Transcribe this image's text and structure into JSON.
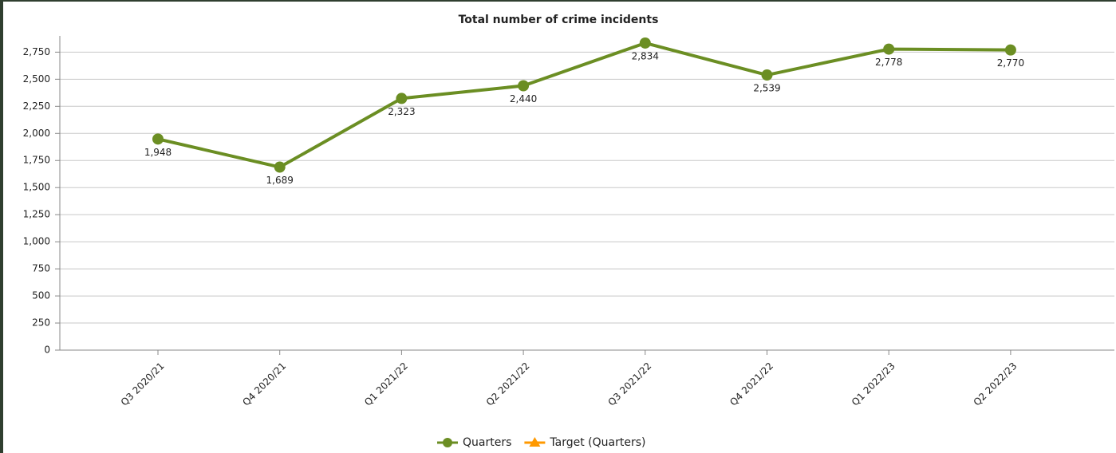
{
  "chart_data": {
    "type": "line",
    "title": "Total number of crime incidents",
    "categories": [
      "Q3 2020/21",
      "Q4 2020/21",
      "Q1 2021/22",
      "Q2 2021/22",
      "Q3 2021/22",
      "Q4 2021/22",
      "Q1 2022/23",
      "Q2 2022/23"
    ],
    "series": [
      {
        "name": "Quarters",
        "color": "#6b8e23",
        "marker": "circle",
        "values": [
          1948,
          1689,
          2323,
          2440,
          2834,
          2539,
          2778,
          2770
        ],
        "value_labels": [
          "1,948",
          "1,689",
          "2,323",
          "2,440",
          "2,834",
          "2,539",
          "2,778",
          "2,770"
        ]
      },
      {
        "name": "Target (Quarters)",
        "color": "#ff9900",
        "marker": "triangle",
        "values": [
          null,
          null,
          null,
          null,
          null,
          null,
          null,
          null
        ]
      }
    ],
    "ylim": [
      0,
      2900
    ],
    "yticks": [
      0,
      250,
      500,
      750,
      {
        "value": 1000,
        "label": "1,000"
      },
      {
        "value": 1250,
        "label": "1,250"
      },
      {
        "value": 1500,
        "label": "1,500"
      },
      {
        "value": 1750,
        "label": "1,750"
      },
      {
        "value": 2000,
        "label": "2,000"
      },
      {
        "value": 2250,
        "label": "2,250"
      },
      {
        "value": 2500,
        "label": "2,500"
      },
      {
        "value": 2750,
        "label": "2,750"
      }
    ],
    "grid": true,
    "legend": "bottom"
  }
}
